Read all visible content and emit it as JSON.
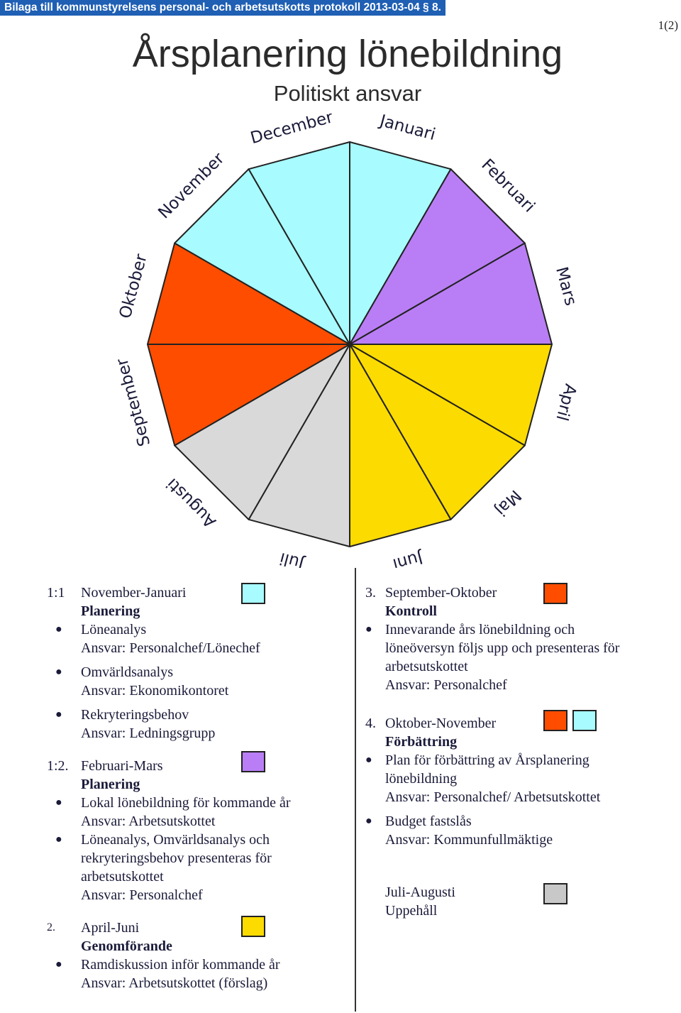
{
  "header": {
    "bilaga": "Bilaga till kommunstyrelsens personal- och arbetsutskotts protokoll 2013-03-04 § 8.",
    "page_number": "1(2)",
    "title": "Årsplanering lönebildning",
    "subtitle": "Politiskt ansvar"
  },
  "colors": {
    "cyan": "#a8fbff",
    "purple": "#b97ef5",
    "yellow": "#fcdb00",
    "gray": "#d9d9d9",
    "orange": "#ff4d00"
  },
  "wheel": {
    "months": [
      {
        "label": "Januari",
        "color": "#a8fbff"
      },
      {
        "label": "Februari",
        "color": "#b97ef5"
      },
      {
        "label": "Mars",
        "color": "#b97ef5"
      },
      {
        "label": "April",
        "color": "#fcdb00"
      },
      {
        "label": "Maj",
        "color": "#fcdb00"
      },
      {
        "label": "Juni",
        "color": "#fcdb00"
      },
      {
        "label": "Juli",
        "color": "#d9d9d9"
      },
      {
        "label": "Augusti",
        "color": "#d9d9d9"
      },
      {
        "label": "September",
        "color": "#ff4d00"
      },
      {
        "label": "Oktober",
        "color": "#ff4d00"
      },
      {
        "label": "November",
        "color": "#a8fbff"
      },
      {
        "label": "December",
        "color": "#a8fbff"
      }
    ]
  },
  "left": {
    "s1": {
      "num": "1:1",
      "period": "November-Januari",
      "heading": "Planering",
      "items": [
        {
          "text": "Löneanalys",
          "ansvar": "Ansvar: Personalchef/Lönechef"
        },
        {
          "text": "Omvärldsanalys",
          "ansvar": "Ansvar: Ekonomikontoret"
        },
        {
          "text": "Rekryteringsbehov",
          "ansvar": "Ansvar: Ledningsgrupp"
        }
      ]
    },
    "s2": {
      "num": "1:2.",
      "period": "Februari-Mars",
      "heading": "Planering",
      "item1": "Lokal lönebildning för kommande år",
      "item1_ansvar": "Ansvar: Arbetsutskottet",
      "item2_l1": "Löneanalys, Omvärldsanalys och",
      "item2_l2": "rekryteringsbehov presenteras för",
      "item2_l3": "arbetsutskottet",
      "item2_ansvar": "Ansvar: Personalchef"
    },
    "s3": {
      "num": "2.",
      "period": "April-Juni",
      "heading": "Genomförande",
      "item1": "Ramdiskussion inför kommande år",
      "item1_ansvar": "Ansvar: Arbetsutskottet (förslag)"
    }
  },
  "right": {
    "s1": {
      "num": "3.",
      "period": "September-Oktober",
      "heading": "Kontroll",
      "l1": "Innevarande års lönebildning och",
      "l2": "löneöversyn följs upp och presenteras för",
      "l3": "arbetsutskottet",
      "ansvar": "Ansvar: Personalchef"
    },
    "s2": {
      "num": "4.",
      "period": "Oktober-November",
      "heading": "Förbättring",
      "item1_l1": "Plan för förbättring av Årsplanering",
      "item1_l2": "lönebildning",
      "item1_ansvar": "Ansvar: Personalchef/ Arbetsutskottet",
      "item2": "Budget fastslås",
      "item2_ansvar": "Ansvar: Kommunfullmäktige"
    },
    "s3": {
      "period": "Juli-Augusti",
      "text": "Uppehåll"
    }
  }
}
